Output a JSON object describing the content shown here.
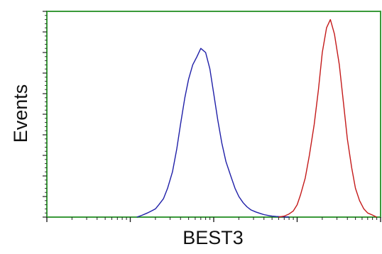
{
  "chart_data": {
    "type": "line",
    "xlabel": "BEST3",
    "ylabel": "Events",
    "x_scale": "log",
    "xlim": [
      1,
      10000
    ],
    "ylim": [
      0,
      100
    ],
    "grid": false,
    "legend": "none",
    "axis_color": "#3a9a3a",
    "series": [
      {
        "color": "#1f1fa8",
        "x": [
          12,
          14,
          16,
          18,
          20,
          22,
          25,
          28,
          32,
          36,
          40,
          45,
          50,
          56,
          63,
          70,
          80,
          90,
          100,
          112,
          125,
          140,
          160,
          180,
          200,
          225,
          250,
          280,
          320,
          360,
          400,
          450,
          500,
          560,
          630,
          700,
          800
        ],
        "y": [
          0,
          1,
          2,
          3,
          4,
          6,
          9,
          14,
          22,
          33,
          45,
          58,
          67,
          74,
          78,
          82,
          80,
          72,
          60,
          47,
          36,
          27,
          20,
          14,
          10,
          7,
          5,
          3.5,
          2.5,
          1.8,
          1.2,
          0.8,
          0.5,
          0.3,
          0.2,
          0.1,
          0
        ]
      },
      {
        "color": "#c41a1a",
        "x": [
          600,
          700,
          800,
          900,
          1000,
          1100,
          1250,
          1400,
          1600,
          1800,
          2000,
          2250,
          2500,
          2800,
          3200,
          3600,
          4000,
          4500,
          5000,
          5600,
          6300,
          7000,
          8000,
          9000
        ],
        "y": [
          0,
          0.5,
          1.5,
          3,
          6,
          11,
          19,
          30,
          45,
          62,
          80,
          92,
          96,
          89,
          74,
          55,
          38,
          24,
          14,
          8,
          4,
          2,
          1,
          0
        ]
      }
    ]
  }
}
